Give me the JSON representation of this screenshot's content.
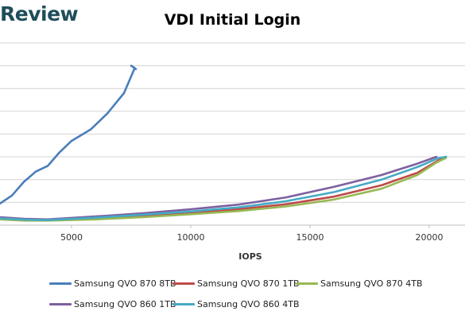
{
  "header": {
    "brand": "Review"
  },
  "chart_data": {
    "type": "line",
    "title": "VDI Initial Login",
    "xlabel": "IOPS",
    "ylabel": "",
    "xticks": [
      5000,
      10000,
      15000,
      20000
    ],
    "xlim": [
      2000,
      21500
    ],
    "ylim": [
      0,
      8
    ],
    "y_gridlines": [
      1,
      2,
      3,
      4,
      5,
      6,
      7,
      8
    ],
    "grid": true,
    "legend_position": "bottom",
    "series": [
      {
        "name": "Samsung QVO 870 8TB",
        "color": "#4a7ebb",
        "points": [
          [
            2000,
            0.95
          ],
          [
            2500,
            1.3
          ],
          [
            3000,
            1.9
          ],
          [
            3500,
            2.35
          ],
          [
            4000,
            2.6
          ],
          [
            4500,
            3.2
          ],
          [
            5000,
            3.7
          ],
          [
            5800,
            4.2
          ],
          [
            6500,
            4.9
          ],
          [
            7200,
            5.8
          ],
          [
            7650,
            6.9
          ],
          [
            7500,
            7.0
          ],
          [
            7700,
            6.85
          ]
        ]
      },
      {
        "name": "Samsung QVO 870 1TB",
        "color": "#be4b48",
        "points": [
          [
            2000,
            0.28
          ],
          [
            3000,
            0.22
          ],
          [
            4000,
            0.22
          ],
          [
            6000,
            0.3
          ],
          [
            8000,
            0.42
          ],
          [
            10000,
            0.55
          ],
          [
            12000,
            0.7
          ],
          [
            14000,
            0.92
          ],
          [
            16000,
            1.25
          ],
          [
            18000,
            1.75
          ],
          [
            19500,
            2.3
          ],
          [
            20400,
            2.85
          ],
          [
            20700,
            3.0
          ]
        ]
      },
      {
        "name": "Samsung QVO 870 4TB",
        "color": "#98b954",
        "points": [
          [
            2000,
            0.25
          ],
          [
            3000,
            0.2
          ],
          [
            4000,
            0.2
          ],
          [
            6000,
            0.25
          ],
          [
            8000,
            0.35
          ],
          [
            10000,
            0.48
          ],
          [
            12000,
            0.62
          ],
          [
            14000,
            0.82
          ],
          [
            16000,
            1.12
          ],
          [
            18000,
            1.6
          ],
          [
            19500,
            2.2
          ],
          [
            20300,
            2.75
          ],
          [
            20700,
            2.95
          ]
        ]
      },
      {
        "name": "Samsung QVO 860 1TB",
        "color": "#7d60a0",
        "points": [
          [
            2000,
            0.35
          ],
          [
            3000,
            0.28
          ],
          [
            4000,
            0.25
          ],
          [
            6000,
            0.38
          ],
          [
            8000,
            0.52
          ],
          [
            10000,
            0.7
          ],
          [
            12000,
            0.9
          ],
          [
            14000,
            1.22
          ],
          [
            16000,
            1.68
          ],
          [
            18000,
            2.2
          ],
          [
            19500,
            2.7
          ],
          [
            20300,
            3.0
          ]
        ]
      },
      {
        "name": "Samsung QVO 860 4TB",
        "color": "#46aac5",
        "points": [
          [
            2000,
            0.3
          ],
          [
            3000,
            0.24
          ],
          [
            4000,
            0.22
          ],
          [
            6000,
            0.33
          ],
          [
            8000,
            0.46
          ],
          [
            10000,
            0.6
          ],
          [
            12000,
            0.78
          ],
          [
            14000,
            1.05
          ],
          [
            16000,
            1.45
          ],
          [
            18000,
            2.0
          ],
          [
            19500,
            2.55
          ],
          [
            20400,
            2.95
          ],
          [
            20700,
            3.0
          ]
        ]
      }
    ]
  }
}
